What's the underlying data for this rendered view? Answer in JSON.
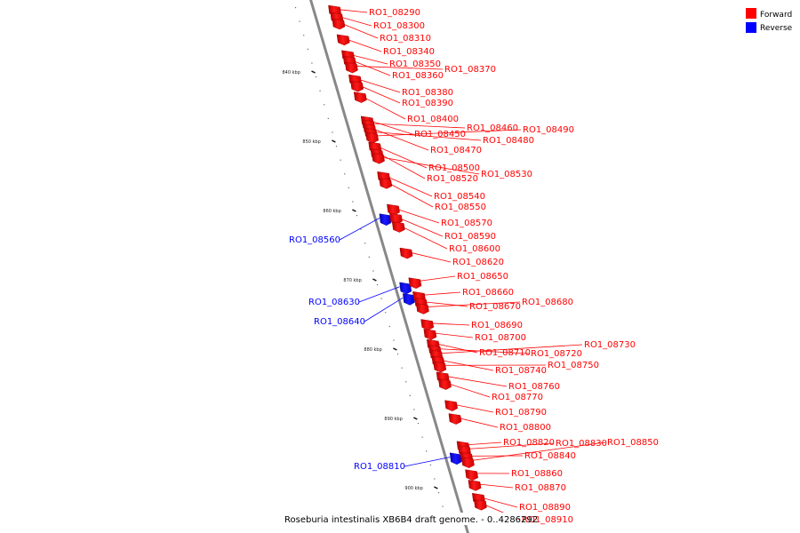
{
  "legend": [
    {
      "label": "Forward",
      "color": "#ff0000"
    },
    {
      "label": "Reverse",
      "color": "#0000ff"
    }
  ],
  "caption": "Roseburia intestinalis XB6B4 draft genome. - 0..4286292",
  "scale": {
    "unit": "kbp",
    "start_kbp": 830,
    "end_kbp": 905,
    "ticks": [
      "840 kbp",
      "850 kbp",
      "860 kbp",
      "870 kbp",
      "880 kbp",
      "890 kbp",
      "900 kbp"
    ]
  },
  "colors": {
    "forward": "#ff0000",
    "reverse": "#0000ff",
    "backbone": "#888888"
  },
  "genes": [
    {
      "name": "RO1_08290",
      "strand": "forward",
      "kbp": 831.3
    },
    {
      "name": "RO1_08300",
      "strand": "forward",
      "kbp": 832.3
    },
    {
      "name": "RO1_08310",
      "strand": "forward",
      "kbp": 833.2
    },
    {
      "name": "RO1_08340",
      "strand": "forward",
      "kbp": 835.5
    },
    {
      "name": "RO1_08350",
      "strand": "forward",
      "kbp": 837.8
    },
    {
      "name": "RO1_08360",
      "strand": "forward",
      "kbp": 838.6
    },
    {
      "name": "RO1_08370",
      "strand": "forward",
      "kbp": 839.5
    },
    {
      "name": "RO1_08380",
      "strand": "forward",
      "kbp": 841.3
    },
    {
      "name": "RO1_08390",
      "strand": "forward",
      "kbp": 842.2
    },
    {
      "name": "RO1_08400",
      "strand": "forward",
      "kbp": 843.8
    },
    {
      "name": "RO1_08450",
      "strand": "forward",
      "kbp": 847.3
    },
    {
      "name": "RO1_08460",
      "strand": "forward",
      "kbp": 847.8
    },
    {
      "name": "RO1_08470",
      "strand": "forward",
      "kbp": 848.4
    },
    {
      "name": "RO1_08480",
      "strand": "forward",
      "kbp": 849.0
    },
    {
      "name": "RO1_08490",
      "strand": "forward",
      "kbp": 849.6
    },
    {
      "name": "RO1_08500",
      "strand": "forward",
      "kbp": 851.0
    },
    {
      "name": "RO1_08520",
      "strand": "forward",
      "kbp": 852.0
    },
    {
      "name": "RO1_08530",
      "strand": "forward",
      "kbp": 852.6
    },
    {
      "name": "RO1_08540",
      "strand": "forward",
      "kbp": 855.3
    },
    {
      "name": "RO1_08550",
      "strand": "forward",
      "kbp": 856.2
    },
    {
      "name": "RO1_08560",
      "strand": "reverse",
      "kbp": 861.5
    },
    {
      "name": "RO1_08570",
      "strand": "forward",
      "kbp": 860.0
    },
    {
      "name": "RO1_08590",
      "strand": "forward",
      "kbp": 861.3
    },
    {
      "name": "RO1_08600",
      "strand": "forward",
      "kbp": 862.5
    },
    {
      "name": "RO1_08620",
      "strand": "forward",
      "kbp": 866.3
    },
    {
      "name": "RO1_08630",
      "strand": "reverse",
      "kbp": 871.4
    },
    {
      "name": "RO1_08640",
      "strand": "reverse",
      "kbp": 873.0
    },
    {
      "name": "RO1_08650",
      "strand": "forward",
      "kbp": 870.6
    },
    {
      "name": "RO1_08660",
      "strand": "forward",
      "kbp": 872.6
    },
    {
      "name": "RO1_08670",
      "strand": "forward",
      "kbp": 873.5
    },
    {
      "name": "RO1_08680",
      "strand": "forward",
      "kbp": 874.3
    },
    {
      "name": "RO1_08690",
      "strand": "forward",
      "kbp": 876.6
    },
    {
      "name": "RO1_08700",
      "strand": "forward",
      "kbp": 878.0
    },
    {
      "name": "RO1_08710",
      "strand": "forward",
      "kbp": 879.5
    },
    {
      "name": "RO1_08720",
      "strand": "forward",
      "kbp": 880.3
    },
    {
      "name": "RO1_08730",
      "strand": "forward",
      "kbp": 881.0
    },
    {
      "name": "RO1_08740",
      "strand": "forward",
      "kbp": 881.9
    },
    {
      "name": "RO1_08750",
      "strand": "forward",
      "kbp": 882.7
    },
    {
      "name": "RO1_08760",
      "strand": "forward",
      "kbp": 884.2
    },
    {
      "name": "RO1_08770",
      "strand": "forward",
      "kbp": 885.2
    },
    {
      "name": "RO1_08790",
      "strand": "forward",
      "kbp": 888.3
    },
    {
      "name": "RO1_08800",
      "strand": "forward",
      "kbp": 890.2
    },
    {
      "name": "RO1_08810",
      "strand": "reverse",
      "kbp": 896.0
    },
    {
      "name": "RO1_08820",
      "strand": "forward",
      "kbp": 894.2
    },
    {
      "name": "RO1_08830",
      "strand": "forward",
      "kbp": 894.8
    },
    {
      "name": "RO1_08840",
      "strand": "forward",
      "kbp": 895.8
    },
    {
      "name": "RO1_08850",
      "strand": "forward",
      "kbp": 896.5
    },
    {
      "name": "RO1_08860",
      "strand": "forward",
      "kbp": 898.3
    },
    {
      "name": "RO1_08870",
      "strand": "forward",
      "kbp": 899.8
    },
    {
      "name": "RO1_08890",
      "strand": "forward",
      "kbp": 901.7
    },
    {
      "name": "RO1_08910",
      "strand": "forward",
      "kbp": 902.6
    }
  ]
}
